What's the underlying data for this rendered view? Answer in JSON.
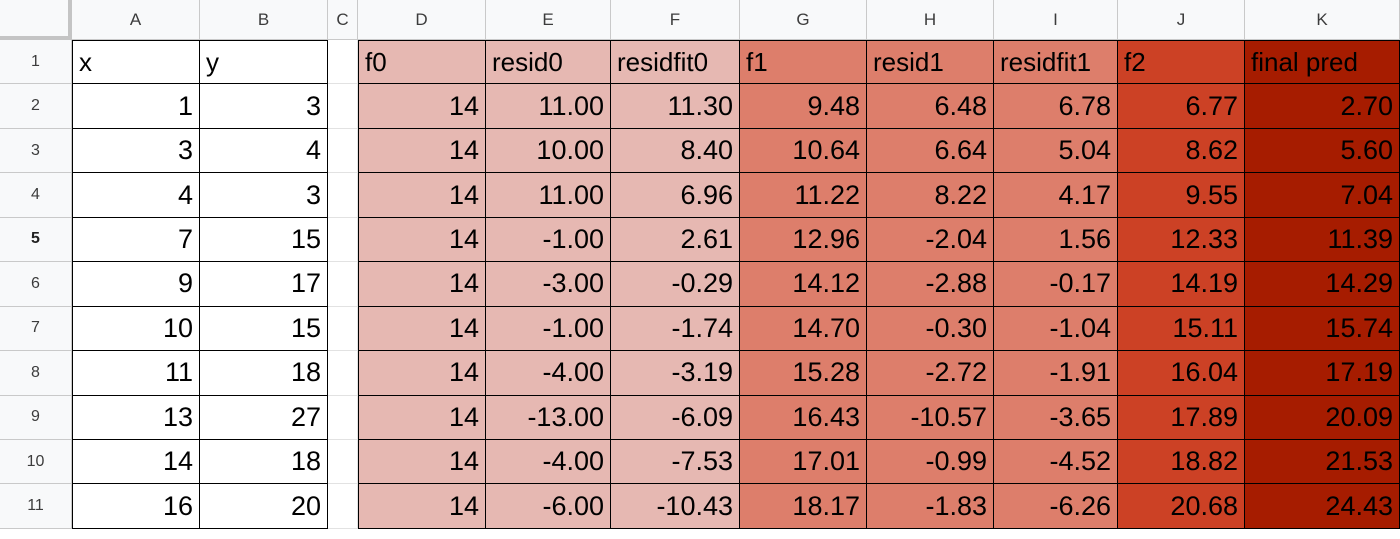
{
  "sheet": {
    "columns": [
      "",
      "A",
      "B",
      "C",
      "D",
      "E",
      "F",
      "G",
      "H",
      "I",
      "J",
      "K"
    ],
    "rows": [
      "1",
      "2",
      "3",
      "4",
      "5",
      "6",
      "7",
      "8",
      "9",
      "10",
      "11"
    ],
    "selected_row": "5",
    "left_table": {
      "headers": [
        "x",
        "y"
      ],
      "values": [
        [
          "1",
          "3"
        ],
        [
          "3",
          "4"
        ],
        [
          "4",
          "3"
        ],
        [
          "7",
          "15"
        ],
        [
          "9",
          "17"
        ],
        [
          "10",
          "15"
        ],
        [
          "11",
          "18"
        ],
        [
          "13",
          "27"
        ],
        [
          "14",
          "18"
        ],
        [
          "16",
          "20"
        ]
      ]
    },
    "right_table": {
      "headers": [
        "f0",
        "resid0",
        "residfit0",
        "f1",
        "resid1",
        "residfit1",
        "f2",
        "final pred"
      ],
      "fill_colors": [
        "#e6b8b2",
        "#e6b8b2",
        "#e6b8b2",
        "#dd7e6b",
        "#dd7e6b",
        "#dd7e6b",
        "#cc4125",
        "#a61c00"
      ],
      "values": [
        [
          "14",
          "11.00",
          "11.30",
          "9.48",
          "6.48",
          "6.78",
          "6.77",
          "2.70"
        ],
        [
          "14",
          "10.00",
          "8.40",
          "10.64",
          "6.64",
          "5.04",
          "8.62",
          "5.60"
        ],
        [
          "14",
          "11.00",
          "6.96",
          "11.22",
          "8.22",
          "4.17",
          "9.55",
          "7.04"
        ],
        [
          "14",
          "-1.00",
          "2.61",
          "12.96",
          "-2.04",
          "1.56",
          "12.33",
          "11.39"
        ],
        [
          "14",
          "-3.00",
          "-0.29",
          "14.12",
          "-2.88",
          "-0.17",
          "14.19",
          "14.29"
        ],
        [
          "14",
          "-1.00",
          "-1.74",
          "14.70",
          "-0.30",
          "-1.04",
          "15.11",
          "15.74"
        ],
        [
          "14",
          "-4.00",
          "-3.19",
          "15.28",
          "-2.72",
          "-1.91",
          "16.04",
          "17.19"
        ],
        [
          "14",
          "-13.00",
          "-6.09",
          "16.43",
          "-10.57",
          "-3.65",
          "17.89",
          "20.09"
        ],
        [
          "14",
          "-4.00",
          "-7.53",
          "17.01",
          "-0.99",
          "-4.52",
          "18.82",
          "21.53"
        ],
        [
          "14",
          "-6.00",
          "-10.43",
          "18.17",
          "-1.83",
          "-6.26",
          "20.68",
          "24.43"
        ]
      ]
    }
  }
}
